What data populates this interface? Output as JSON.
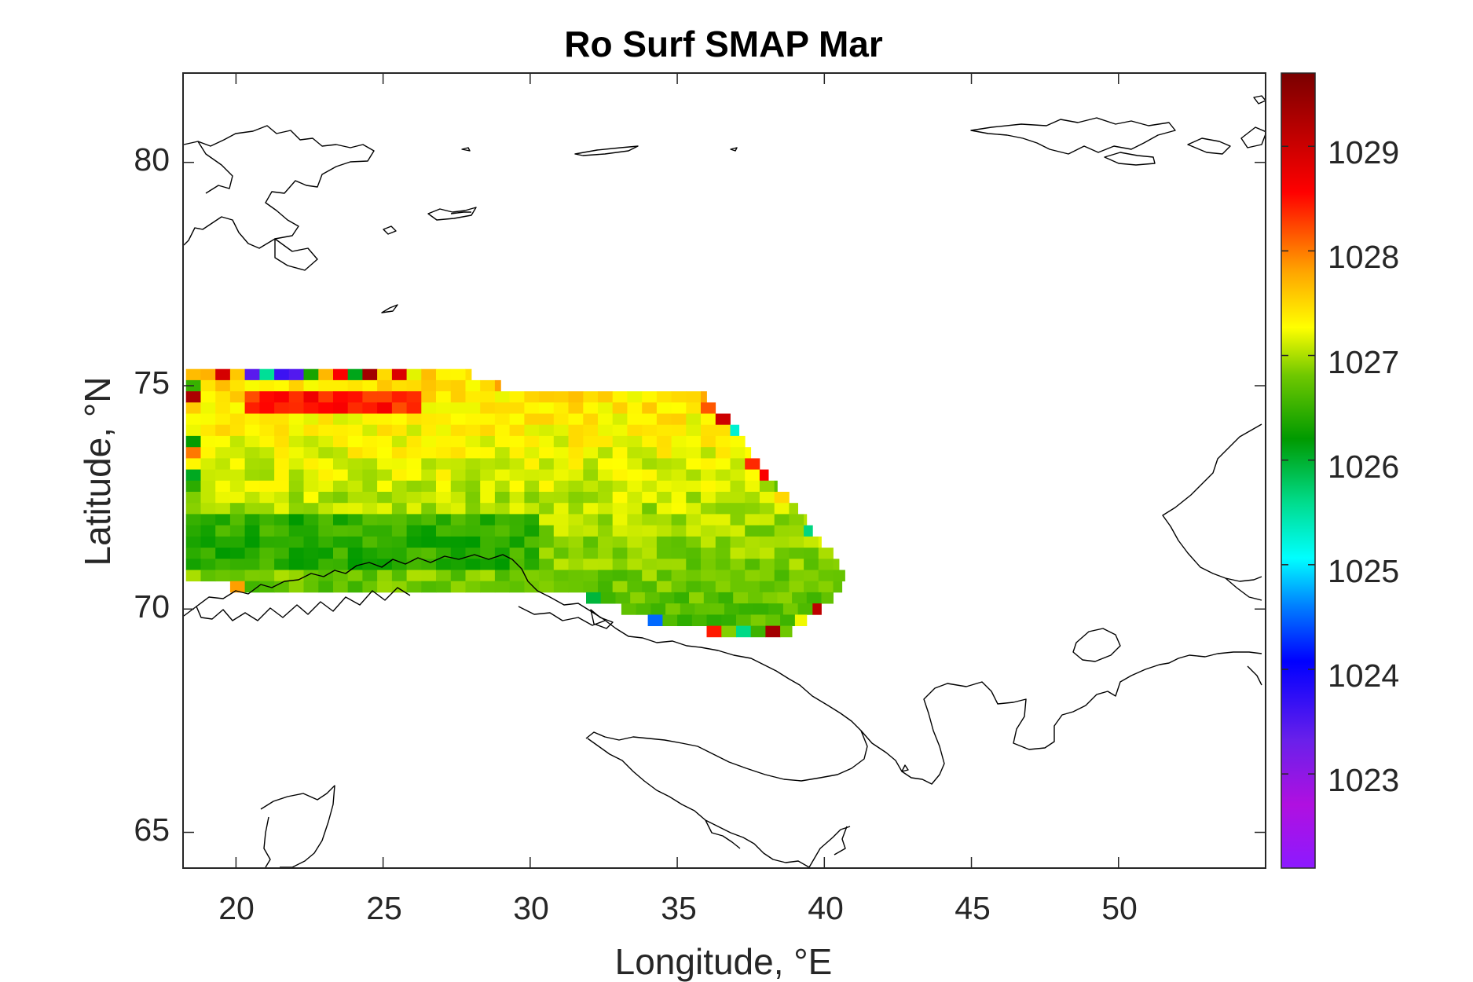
{
  "chart_data": {
    "type": "heatmap",
    "title": "Ro Surf SMAP Mar",
    "xlabel": "Longitude, °E",
    "ylabel": "Latitude, °N",
    "xlim": [
      18.2,
      55.0
    ],
    "ylim": [
      64.2,
      82.0
    ],
    "xticks": [
      20,
      25,
      30,
      35,
      40,
      45,
      50
    ],
    "xtick_labels": [
      "20",
      "25",
      "30",
      "35",
      "40",
      "45",
      "50"
    ],
    "yticks": [
      65,
      70,
      75,
      80
    ],
    "ytick_labels": [
      "65",
      "70",
      "75",
      "80"
    ],
    "colorbar": {
      "range": [
        1022.1,
        1029.7
      ],
      "ticks": [
        1023,
        1024,
        1025,
        1026,
        1027,
        1028,
        1029
      ],
      "tick_labels": [
        "1023",
        "1024",
        "1025",
        "1026",
        "1027",
        "1028",
        "1029"
      ],
      "colormap": "jet-like"
    },
    "grid": false,
    "region_rows": [
      {
        "lat": 75.25,
        "lon_start": 18.3,
        "lon_end": 28.0
      },
      {
        "lat": 75.0,
        "lon_start": 18.3,
        "lon_end": 29.0
      },
      {
        "lat": 74.75,
        "lon_start": 18.3,
        "lon_end": 36.0
      },
      {
        "lat": 74.5,
        "lon_start": 18.3,
        "lon_end": 36.3
      },
      {
        "lat": 74.25,
        "lon_start": 18.3,
        "lon_end": 36.8
      },
      {
        "lat": 74.0,
        "lon_start": 18.3,
        "lon_end": 37.1
      },
      {
        "lat": 73.75,
        "lon_start": 18.3,
        "lon_end": 37.3
      },
      {
        "lat": 73.5,
        "lon_start": 18.3,
        "lon_end": 37.5
      },
      {
        "lat": 73.25,
        "lon_start": 18.3,
        "lon_end": 37.8
      },
      {
        "lat": 73.0,
        "lon_start": 18.3,
        "lon_end": 38.1
      },
      {
        "lat": 72.75,
        "lon_start": 18.3,
        "lon_end": 38.4
      },
      {
        "lat": 72.5,
        "lon_start": 18.3,
        "lon_end": 38.8
      },
      {
        "lat": 72.25,
        "lon_start": 18.3,
        "lon_end": 39.1
      },
      {
        "lat": 72.0,
        "lon_start": 18.3,
        "lon_end": 39.4
      },
      {
        "lat": 71.75,
        "lon_start": 18.3,
        "lon_end": 39.6
      },
      {
        "lat": 71.5,
        "lon_start": 18.3,
        "lon_end": 39.9
      },
      {
        "lat": 71.25,
        "lon_start": 18.3,
        "lon_end": 40.3
      },
      {
        "lat": 71.0,
        "lon_start": 18.3,
        "lon_end": 40.5
      },
      {
        "lat": 70.75,
        "lon_start": 18.3,
        "lon_end": 40.7
      },
      {
        "lat": 70.5,
        "lon_start": 19.8,
        "lon_end": 40.6
      },
      {
        "lat": 70.25,
        "lon_start": 31.9,
        "lon_end": 40.3
      },
      {
        "lat": 70.0,
        "lon_start": 33.1,
        "lon_end": 39.9
      },
      {
        "lat": 69.75,
        "lon_start": 34.0,
        "lon_end": 39.4
      },
      {
        "lat": 69.5,
        "lon_start": 36.0,
        "lon_end": 38.9
      }
    ]
  }
}
